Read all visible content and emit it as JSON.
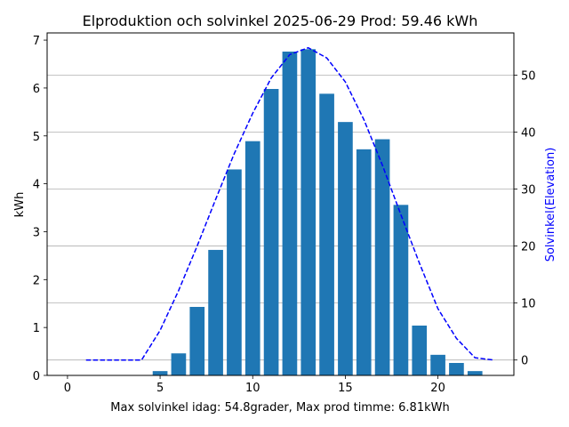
{
  "chart_data": {
    "type": "bar",
    "title": "Elproduktion och solvinkel 2025-06-29 Prod: 59.46 kWh",
    "xlabel": "Max solvinkel idag: 54.8grader, Max prod timme: 6.81kWh",
    "ylabel": "kWh",
    "y2label": "Solvinkel(Elevation)",
    "colors": {
      "bars": "#1f77b4",
      "elevation": "#0000ff",
      "y2label": "#0000ff",
      "grid": "#b0b0b0"
    },
    "xlim": [
      -1.1,
      24.1
    ],
    "ylim": [
      0,
      7.15
    ],
    "y2lim": [
      -2.7,
      57.4
    ],
    "grid": {
      "horizontal": true,
      "vertical": false,
      "axis": "secondary"
    },
    "xticks": [
      0,
      5,
      10,
      15,
      20
    ],
    "yticks": [
      0,
      1,
      2,
      3,
      4,
      5,
      6,
      7
    ],
    "y2ticks": [
      0,
      10,
      20,
      30,
      40,
      50
    ],
    "hours": [
      5,
      6,
      7,
      8,
      9,
      10,
      11,
      12,
      13,
      14,
      15,
      16,
      17,
      18,
      19,
      20,
      21,
      22
    ],
    "values": [
      0.09,
      0.46,
      1.43,
      2.62,
      4.3,
      4.89,
      5.98,
      6.76,
      6.81,
      5.88,
      5.29,
      4.72,
      4.93,
      3.56,
      1.04,
      0.43,
      0.26,
      0.09
    ],
    "series": [
      {
        "type": "line",
        "style": "dashed",
        "axis": "secondary",
        "x": [
          1,
          2,
          3,
          4,
          5,
          6,
          7,
          8,
          9,
          10,
          11,
          12,
          13,
          14,
          15,
          16,
          17,
          18,
          19,
          20,
          21,
          22,
          23
        ],
        "values": [
          0,
          0,
          0,
          0,
          5.2,
          12.2,
          20.0,
          28.2,
          36.2,
          43.3,
          49.5,
          53.6,
          54.8,
          53.0,
          48.8,
          42.2,
          34.2,
          25.5,
          17.0,
          9.0,
          3.8,
          0.4,
          0
        ]
      }
    ]
  }
}
